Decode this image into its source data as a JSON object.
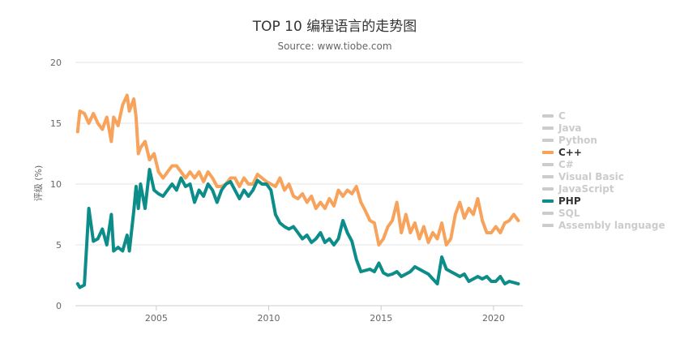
{
  "chart_data": {
    "type": "line",
    "title": "TOP 10 编程语言的走势图",
    "subtitle": "Source: www.tiobe.com",
    "xlabel": "",
    "ylabel": "评级 (%)",
    "xlim": [
      2001.4,
      2021.3
    ],
    "ylim": [
      0,
      20
    ],
    "x_ticks": [
      2005,
      2010,
      2015,
      2020
    ],
    "y_ticks": [
      0,
      5,
      10,
      15,
      20
    ],
    "grid": true,
    "legend_position": "right",
    "series": [
      {
        "name": "C",
        "color": "#cccccc",
        "visible": false,
        "x": [],
        "values": []
      },
      {
        "name": "Java",
        "color": "#cccccc",
        "visible": false,
        "x": [],
        "values": []
      },
      {
        "name": "Python",
        "color": "#cccccc",
        "visible": false,
        "x": [],
        "values": []
      },
      {
        "name": "C++",
        "color": "#f7a35c",
        "visible": true,
        "x": [
          2001.5,
          2001.6,
          2001.8,
          2002.0,
          2002.2,
          2002.4,
          2002.6,
          2002.8,
          2003.0,
          2003.1,
          2003.3,
          2003.5,
          2003.7,
          2003.8,
          2004.0,
          2004.1,
          2004.2,
          2004.3,
          2004.5,
          2004.7,
          2004.9,
          2005.1,
          2005.3,
          2005.5,
          2005.7,
          2005.9,
          2006.1,
          2006.3,
          2006.5,
          2006.7,
          2006.9,
          2007.1,
          2007.3,
          2007.5,
          2007.7,
          2007.9,
          2008.1,
          2008.3,
          2008.5,
          2008.7,
          2008.9,
          2009.1,
          2009.3,
          2009.5,
          2009.7,
          2009.9,
          2010.1,
          2010.3,
          2010.5,
          2010.7,
          2010.9,
          2011.1,
          2011.3,
          2011.5,
          2011.7,
          2011.9,
          2012.1,
          2012.3,
          2012.5,
          2012.7,
          2012.9,
          2013.1,
          2013.3,
          2013.5,
          2013.7,
          2013.9,
          2014.1,
          2014.3,
          2014.5,
          2014.7,
          2014.9,
          2015.1,
          2015.3,
          2015.5,
          2015.7,
          2015.9,
          2016.1,
          2016.3,
          2016.5,
          2016.7,
          2016.9,
          2017.1,
          2017.3,
          2017.5,
          2017.7,
          2017.9,
          2018.1,
          2018.3,
          2018.5,
          2018.7,
          2018.9,
          2019.1,
          2019.3,
          2019.5,
          2019.7,
          2019.9,
          2020.1,
          2020.3,
          2020.5,
          2020.7,
          2020.9,
          2021.1
        ],
        "values": [
          14.3,
          16.0,
          15.8,
          15.0,
          15.8,
          15.0,
          14.5,
          15.5,
          13.5,
          15.5,
          14.8,
          16.5,
          17.3,
          16.0,
          17.0,
          15.5,
          12.5,
          13.0,
          13.5,
          12.0,
          12.5,
          11.0,
          10.5,
          11.0,
          11.5,
          11.5,
          11.0,
          10.5,
          11.0,
          10.5,
          11.0,
          10.2,
          11.0,
          10.5,
          9.8,
          9.8,
          10.0,
          10.5,
          10.5,
          9.8,
          10.5,
          10.0,
          10.0,
          10.8,
          10.5,
          10.2,
          10.0,
          9.8,
          10.5,
          9.5,
          10.0,
          9.0,
          8.8,
          9.2,
          8.5,
          9.0,
          8.0,
          8.5,
          8.0,
          8.8,
          8.2,
          9.5,
          9.0,
          9.5,
          9.2,
          9.8,
          8.5,
          7.8,
          7.0,
          6.8,
          5.0,
          5.5,
          6.5,
          7.0,
          8.5,
          6.0,
          7.5,
          6.0,
          6.8,
          5.5,
          6.5,
          5.2,
          6.0,
          5.5,
          6.8,
          5.0,
          5.5,
          7.5,
          8.5,
          7.2,
          8.0,
          7.5,
          8.8,
          7.0,
          6.0,
          6.0,
          6.5,
          6.0,
          6.8,
          7.0,
          7.5,
          7.0
        ]
      },
      {
        "name": "C#",
        "color": "#cccccc",
        "visible": false,
        "x": [],
        "values": []
      },
      {
        "name": "Visual Basic",
        "color": "#cccccc",
        "visible": false,
        "x": [],
        "values": []
      },
      {
        "name": "JavaScript",
        "color": "#cccccc",
        "visible": false,
        "x": [],
        "values": []
      },
      {
        "name": "PHP",
        "color": "#0d8d8a",
        "visible": true,
        "x": [
          2001.5,
          2001.6,
          2001.8,
          2002.0,
          2002.2,
          2002.4,
          2002.6,
          2002.8,
          2003.0,
          2003.1,
          2003.3,
          2003.5,
          2003.7,
          2003.8,
          2004.0,
          2004.1,
          2004.2,
          2004.3,
          2004.5,
          2004.7,
          2004.9,
          2005.1,
          2005.3,
          2005.5,
          2005.7,
          2005.9,
          2006.1,
          2006.3,
          2006.5,
          2006.7,
          2006.9,
          2007.1,
          2007.3,
          2007.5,
          2007.7,
          2007.9,
          2008.1,
          2008.3,
          2008.5,
          2008.7,
          2008.9,
          2009.1,
          2009.3,
          2009.5,
          2009.7,
          2009.9,
          2010.1,
          2010.3,
          2010.5,
          2010.7,
          2010.9,
          2011.1,
          2011.3,
          2011.5,
          2011.7,
          2011.9,
          2012.1,
          2012.3,
          2012.5,
          2012.7,
          2012.9,
          2013.1,
          2013.3,
          2013.5,
          2013.7,
          2013.9,
          2014.1,
          2014.3,
          2014.5,
          2014.7,
          2014.9,
          2015.1,
          2015.3,
          2015.5,
          2015.7,
          2015.9,
          2016.1,
          2016.3,
          2016.5,
          2016.7,
          2016.9,
          2017.1,
          2017.3,
          2017.5,
          2017.7,
          2017.9,
          2018.1,
          2018.3,
          2018.5,
          2018.7,
          2018.9,
          2019.1,
          2019.3,
          2019.5,
          2019.7,
          2019.9,
          2020.1,
          2020.3,
          2020.5,
          2020.7,
          2020.9,
          2021.1
        ],
        "values": [
          1.8,
          1.5,
          1.7,
          8.0,
          5.3,
          5.5,
          6.3,
          5.0,
          7.5,
          4.5,
          4.8,
          4.5,
          5.8,
          4.5,
          7.8,
          9.8,
          8.0,
          10.0,
          8.0,
          11.2,
          9.5,
          9.2,
          9.0,
          9.5,
          10.0,
          9.5,
          10.5,
          9.8,
          10.0,
          8.5,
          9.5,
          9.0,
          10.0,
          9.5,
          8.5,
          9.5,
          10.0,
          10.2,
          9.5,
          8.8,
          9.5,
          9.0,
          9.5,
          10.3,
          10.0,
          10.0,
          9.5,
          7.5,
          6.8,
          6.5,
          6.3,
          6.5,
          6.0,
          5.5,
          5.8,
          5.2,
          5.5,
          6.0,
          5.2,
          5.5,
          5.0,
          5.5,
          7.0,
          6.0,
          5.3,
          3.8,
          2.8,
          2.9,
          3.0,
          2.8,
          3.5,
          2.7,
          2.5,
          2.6,
          2.8,
          2.4,
          2.6,
          2.8,
          3.2,
          3.0,
          2.8,
          2.6,
          2.2,
          1.8,
          4.0,
          3.0,
          2.8,
          2.6,
          2.4,
          2.6,
          2.0,
          2.2,
          2.4,
          2.2,
          2.4,
          2.0,
          2.0,
          2.4,
          1.8,
          2.0,
          1.9,
          1.8
        ]
      },
      {
        "name": "SQL",
        "color": "#cccccc",
        "visible": false,
        "x": [],
        "values": []
      },
      {
        "name": "Assembly language",
        "color": "#cccccc",
        "visible": false,
        "x": [],
        "values": []
      }
    ]
  }
}
